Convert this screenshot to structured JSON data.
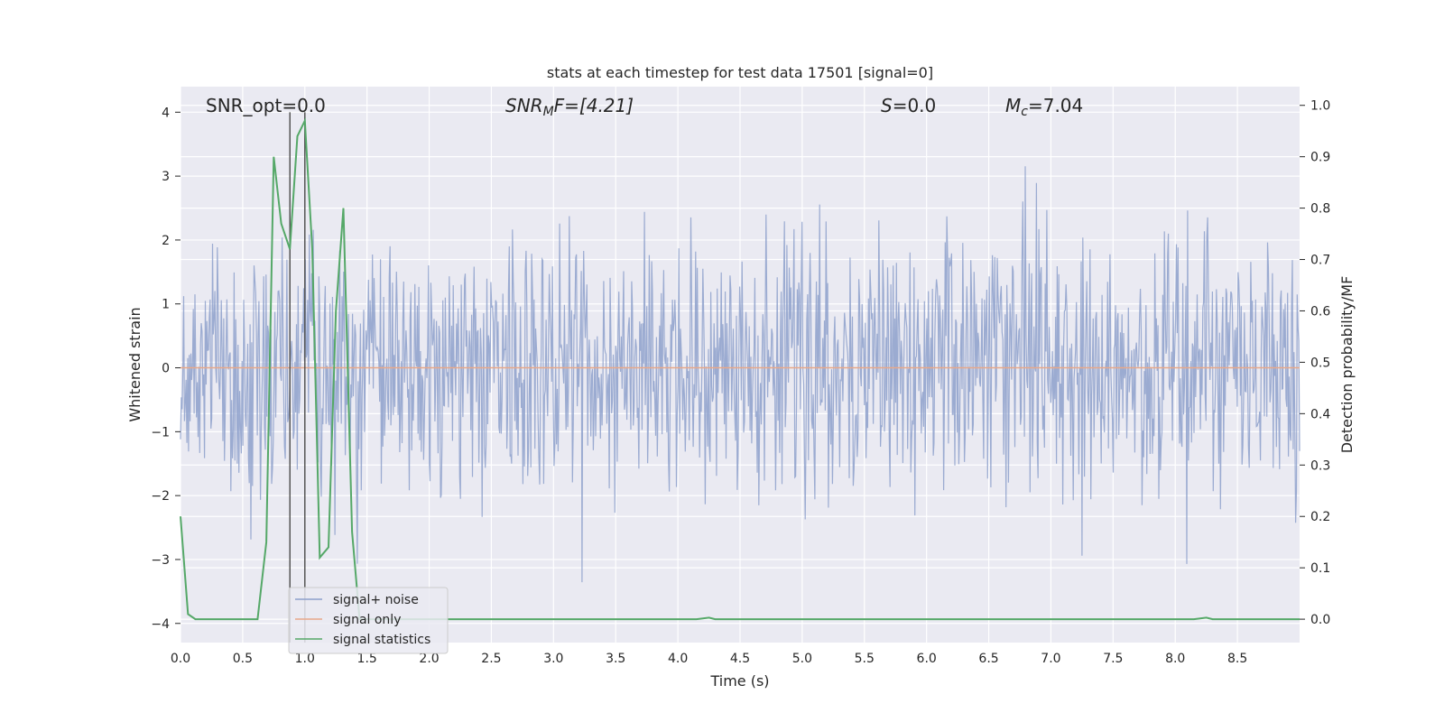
{
  "chart_data": {
    "type": "line",
    "title": "stats at each timestep for test data 17501 [signal=0]",
    "xlabel": "Time (s)",
    "ylabel_left": "Whitened strain",
    "ylabel_right": "Detection probability/MF",
    "xlim": [
      0.0,
      9.0
    ],
    "ylim_left": [
      -4.3,
      4.4
    ],
    "ylim_right": [
      -0.0455,
      1.0364
    ],
    "xticks": [
      "0.0",
      "0.5",
      "1.0",
      "1.5",
      "2.0",
      "2.5",
      "3.0",
      "3.5",
      "4.0",
      "4.5",
      "5.0",
      "5.5",
      "6.0",
      "6.5",
      "7.0",
      "7.5",
      "8.0",
      "8.5"
    ],
    "xtick_values": [
      0.0,
      0.5,
      1.0,
      1.5,
      2.0,
      2.5,
      3.0,
      3.5,
      4.0,
      4.5,
      5.0,
      5.5,
      6.0,
      6.5,
      7.0,
      7.5,
      8.0,
      8.5
    ],
    "yticks_left": [
      "−4",
      "−3",
      "−2",
      "−1",
      "0",
      "1",
      "2",
      "3",
      "4"
    ],
    "ytick_values_left": [
      -4,
      -3,
      -2,
      -1,
      0,
      1,
      2,
      3,
      4
    ],
    "yticks_right": [
      "0.0",
      "0.1",
      "0.2",
      "0.3",
      "0.4",
      "0.5",
      "0.6",
      "0.7",
      "0.8",
      "0.9",
      "1.0"
    ],
    "ytick_values_right": [
      0.0,
      0.1,
      0.2,
      0.3,
      0.4,
      0.5,
      0.6,
      0.7,
      0.8,
      0.9,
      1.0
    ],
    "grid": true,
    "annotations": {
      "snr_opt": "SNR_opt=0.0",
      "snr_mf_main": "SNR",
      "snr_mf_sub": "M",
      "snr_mf_rest": "F=[4.21]",
      "s_main": "S",
      "s_rest": "=0.0",
      "mc_main": "M",
      "mc_sub": "c",
      "mc_rest": "=7.04"
    },
    "vlines_x": [
      0.88,
      1.0
    ],
    "legend": {
      "placement": "lower-left",
      "entries": [
        "signal+ noise",
        "signal only",
        "signal statistics"
      ]
    },
    "series": [
      {
        "name": "signal+ noise",
        "color": "#8da0cb",
        "axis": "left",
        "noise": {
          "start": 0.0,
          "end": 9.0,
          "count": 1400,
          "sigma": 1.0
        }
      },
      {
        "name": "signal only",
        "color": "#e8a889",
        "axis": "left",
        "x": [
          0.0,
          9.0
        ],
        "y": [
          0.0,
          0.0
        ]
      },
      {
        "name": "signal statistics",
        "color": "#55a868",
        "axis": "right",
        "x": [
          0.0,
          0.06,
          0.12,
          0.19,
          0.25,
          0.31,
          0.38,
          0.44,
          0.5,
          0.56,
          0.62,
          0.69,
          0.75,
          0.81,
          0.88,
          0.94,
          1.0,
          1.06,
          1.12,
          1.19,
          1.25,
          1.31,
          1.38,
          1.44,
          1.5,
          1.56,
          1.62,
          4.15,
          4.25,
          4.3,
          8.15,
          8.25,
          8.3,
          9.0
        ],
        "y": [
          0.2,
          0.01,
          0.0,
          0.0,
          0.0,
          0.0,
          0.0,
          0.0,
          0.0,
          0.0,
          0.0,
          0.15,
          0.9,
          0.77,
          0.72,
          0.94,
          0.97,
          0.72,
          0.12,
          0.14,
          0.6,
          0.8,
          0.17,
          0.0,
          0.0,
          0.0,
          0.0,
          0.0,
          0.003,
          0.0,
          0.0,
          0.003,
          0.0,
          0.0
        ]
      }
    ],
    "colors": {
      "plot_bg": "#eaeaf2",
      "grid": "#ffffff",
      "text": "#262626",
      "vline": "#555555"
    }
  }
}
